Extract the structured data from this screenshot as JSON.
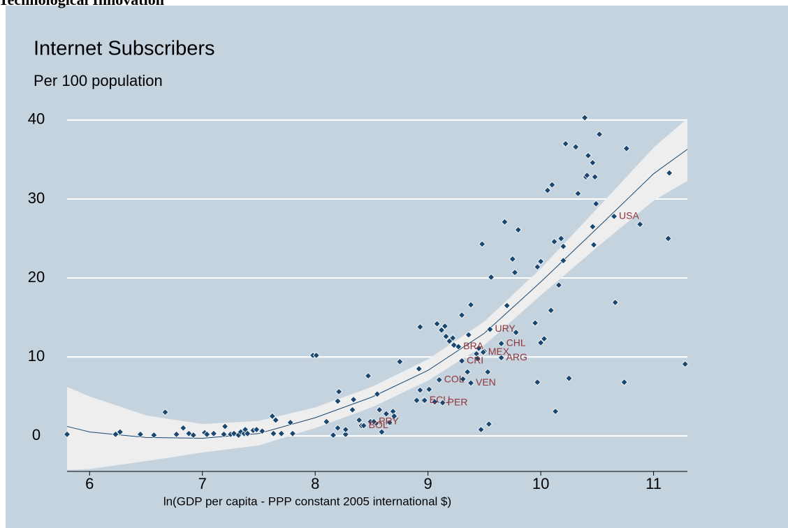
{
  "header": "Technological Innovation",
  "chart_data": {
    "type": "scatter",
    "title": "Internet Subscribers",
    "subtitle": "Per 100 population",
    "x_label": "ln(GDP per capita - PPP constant 2005 international $)",
    "xlim": [
      5.8,
      11.3
    ],
    "ylim": [
      -4.5,
      43
    ],
    "xticks": [
      6,
      7,
      8,
      9,
      10,
      11
    ],
    "yticks": [
      0,
      10,
      20,
      30,
      40
    ],
    "grid": true,
    "point_color": "#1a476f",
    "label_color": "#90353b",
    "fit_color": "#1a476f",
    "ci_color": "#eeeeee",
    "points": {
      "x": [
        5.8,
        6.23,
        6.27,
        6.45,
        6.57,
        6.67,
        6.77,
        6.83,
        6.88,
        6.92,
        7.02,
        7.04,
        7.1,
        7.19,
        7.2,
        7.25,
        7.28,
        7.32,
        7.34,
        7.37,
        7.38,
        7.4,
        7.45,
        7.48,
        7.53,
        7.62,
        7.65,
        7.63,
        7.7,
        7.78,
        7.8,
        7.98,
        8.01,
        8.1,
        8.16,
        8.2,
        8.2,
        8.21,
        8.27,
        8.27,
        8.34,
        8.33,
        8.39,
        8.41,
        8.47,
        8.49,
        8.54,
        8.55,
        8.57,
        8.59,
        8.63,
        8.66,
        8.69,
        8.7,
        8.75,
        8.9,
        8.92,
        8.93,
        8.93,
        8.96,
        9.01,
        9.06,
        9.08,
        9.12,
        9.15,
        9.16,
        9.19,
        9.22,
        9.23,
        9.3,
        9.31,
        9.35,
        9.36,
        9.38,
        9.43,
        9.44,
        9.45,
        9.47,
        9.48,
        9.5,
        9.53,
        9.54,
        9.56,
        9.68,
        9.7,
        9.75,
        9.77,
        9.78,
        9.8,
        9.95,
        9.97,
        9.97,
        10.0,
        10.0,
        10.03,
        10.06,
        10.09,
        10.1,
        10.12,
        10.13,
        10.16,
        10.18,
        10.2,
        10.2,
        10.22,
        10.25,
        10.31,
        10.33,
        10.39,
        10.4,
        10.42,
        10.41,
        10.46,
        10.46,
        10.47,
        10.48,
        10.49,
        10.52,
        10.66,
        10.74,
        10.76,
        10.88,
        11.13,
        11.14,
        11.28,
        10.65,
        9.55,
        9.65,
        9.27,
        9.49,
        9.65,
        9.3,
        9.1,
        9.38,
        8.97,
        9.13,
        8.52,
        8.43
      ],
      "y": [
        0.2,
        0.2,
        0.5,
        0.2,
        0.1,
        3.0,
        0.2,
        1.0,
        0.3,
        0.1,
        0.4,
        0.2,
        0.3,
        0.2,
        1.2,
        0.2,
        0.3,
        0.1,
        0.5,
        0.3,
        0.8,
        0.3,
        0.7,
        0.8,
        0.6,
        2.5,
        2.0,
        0.3,
        0.3,
        1.7,
        0.3,
        10.2,
        10.2,
        1.8,
        0.1,
        1.0,
        4.4,
        5.6,
        0.2,
        0.8,
        4.6,
        3.3,
        2.0,
        1.3,
        7.6,
        1.8,
        1.6,
        5.3,
        3.3,
        0.5,
        2.8,
        1.7,
        3.1,
        2.5,
        9.4,
        4.5,
        8.5,
        13.8,
        5.8,
        4.5,
        5.9,
        4.3,
        14.2,
        13.4,
        13.9,
        12.6,
        12.0,
        12.4,
        11.5,
        15.3,
        7.2,
        8.1,
        12.8,
        16.6,
        10.4,
        9.8,
        11.1,
        0.8,
        24.3,
        10.7,
        8.1,
        1.5,
        20.1,
        27.1,
        16.5,
        22.4,
        20.7,
        13.1,
        26.1,
        14.3,
        21.4,
        6.8,
        22.1,
        11.8,
        12.3,
        31.1,
        15.9,
        31.8,
        24.6,
        3.1,
        19.1,
        25.0,
        24.0,
        22.2,
        37.0,
        7.3,
        36.6,
        30.7,
        40.3,
        32.8,
        35.5,
        33.0,
        34.6,
        26.5,
        24.2,
        32.8,
        29.4,
        38.2,
        16.9,
        6.8,
        36.4,
        26.8,
        25.0,
        33.3,
        9.1,
        27.8,
        13.5,
        11.7,
        11.3,
        10.6,
        9.9,
        9.5,
        7.1,
        6.7,
        4.5,
        4.2,
        1.8,
        1.3
      ],
      "labels": [
        null,
        null,
        null,
        null,
        null,
        null,
        null,
        null,
        null,
        null,
        null,
        null,
        null,
        null,
        null,
        null,
        null,
        null,
        null,
        null,
        null,
        null,
        null,
        null,
        null,
        null,
        null,
        null,
        null,
        null,
        null,
        null,
        null,
        null,
        null,
        null,
        null,
        null,
        null,
        null,
        null,
        null,
        null,
        null,
        null,
        null,
        null,
        null,
        null,
        null,
        null,
        null,
        null,
        null,
        null,
        null,
        null,
        null,
        null,
        null,
        null,
        null,
        null,
        null,
        null,
        null,
        null,
        null,
        null,
        null,
        null,
        null,
        null,
        null,
        null,
        null,
        null,
        null,
        null,
        null,
        null,
        null,
        null,
        null,
        null,
        null,
        null,
        null,
        null,
        null,
        null,
        null,
        null,
        null,
        null,
        null,
        null,
        null,
        null,
        null,
        null,
        null,
        null,
        null,
        null,
        null,
        null,
        null,
        null,
        null,
        null,
        null,
        null,
        null,
        null,
        null,
        null,
        null,
        null,
        null,
        null,
        null,
        null,
        null,
        null,
        "USA",
        "URY",
        "CHL",
        "BRA",
        "MEX",
        "ARG",
        "CRI",
        "COL",
        "VEN",
        "ECU",
        "PER",
        "PRY",
        "BOL"
      ]
    },
    "fit": {
      "x": [
        5.8,
        6,
        6.5,
        7,
        7.5,
        8,
        8.5,
        9,
        9.5,
        10,
        10.5,
        11,
        11.3
      ],
      "y": [
        1.2,
        0.5,
        -0.2,
        -0.3,
        0.3,
        2.3,
        4.9,
        8.3,
        13,
        19.5,
        26.3,
        33.2,
        36.3
      ],
      "upper": [
        6.2,
        5.0,
        2.6,
        1.5,
        1.9,
        3.6,
        6.2,
        9.7,
        14.5,
        21.2,
        28.8,
        36.5,
        40.2
      ],
      "lower": [
        -4.3,
        -4.2,
        -3.2,
        -2.1,
        -1.2,
        1.0,
        3.6,
        7.0,
        11.5,
        17.8,
        23.9,
        29.8,
        32.3
      ]
    }
  }
}
